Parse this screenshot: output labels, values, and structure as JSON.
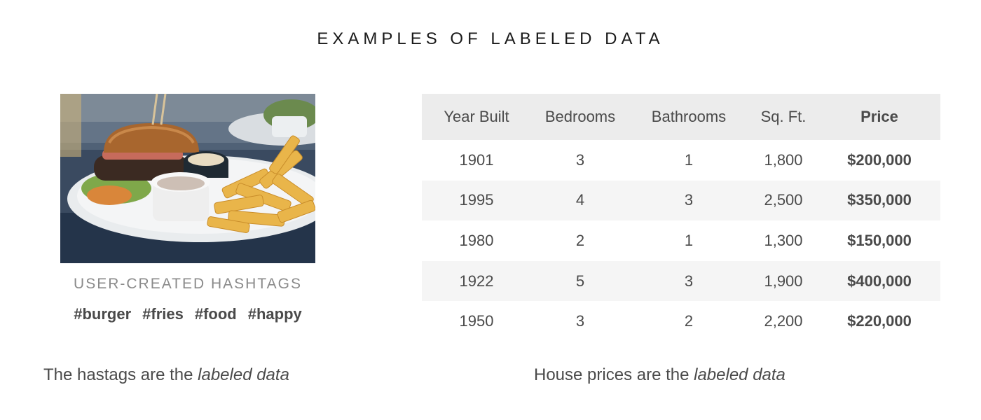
{
  "title": "EXAMPLES OF LABELED DATA",
  "left_panel": {
    "photo_icon": "burger-and-fries-photo",
    "heading": "USER-CREATED HASHTAGS",
    "hashtags": [
      "#burger",
      "#fries",
      "#food",
      "#happy"
    ],
    "caption_prefix": "The hastags are the ",
    "caption_emphasis": "labeled data"
  },
  "right_panel": {
    "table": {
      "headers": [
        "Year Built",
        "Bedrooms",
        "Bathrooms",
        "Sq. Ft.",
        "Price"
      ],
      "rows": [
        [
          "1901",
          "3",
          "1",
          "1,800",
          "$200,000"
        ],
        [
          "1995",
          "4",
          "3",
          "2,500",
          "$350,000"
        ],
        [
          "1980",
          "2",
          "1",
          "1,300",
          "$150,000"
        ],
        [
          "1922",
          "5",
          "3",
          "1,900",
          "$400,000"
        ],
        [
          "1950",
          "3",
          "2",
          "2,200",
          "$220,000"
        ]
      ]
    },
    "caption_prefix": "House prices are the ",
    "caption_emphasis": "labeled data"
  }
}
